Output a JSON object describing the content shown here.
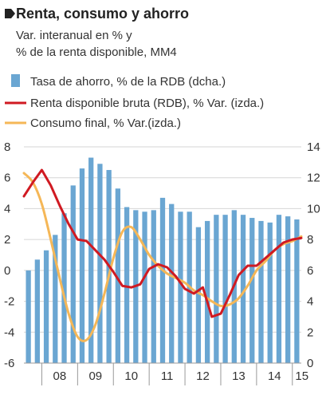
{
  "chart_data": {
    "type": "bar+line",
    "title": "Renta, consumo y ahorro",
    "subtitle_line1": "Var. interanual en % y",
    "subtitle_line2": "% de la renta disponible, MM4",
    "legend": [
      {
        "label": "Tasa de ahorro, % de la RDB (dcha.)",
        "color": "#6aa6d2",
        "kind": "bar"
      },
      {
        "label": "Renta disponible bruta (RDB), % Var. (izda.)",
        "color": "#d01a22",
        "kind": "line"
      },
      {
        "label": "Consumo final, % Var.(izda.)",
        "color": "#f5b757",
        "kind": "line"
      }
    ],
    "left_axis": {
      "ticks": [
        "8",
        "6",
        "4",
        "2",
        "0",
        "-2",
        "-4",
        "-6"
      ],
      "min": -6,
      "max": 8
    },
    "right_axis": {
      "ticks": [
        "14",
        "12",
        "10",
        "8",
        "6",
        "4",
        "2",
        "0"
      ],
      "min": 0,
      "max": 14
    },
    "x_labels": [
      "08",
      "09",
      "10",
      "11",
      "12",
      "13",
      "14",
      "15"
    ],
    "x_range": [
      2007.5,
      2015.25
    ],
    "bars": {
      "x": [
        2007.625,
        2007.875,
        2008.125,
        2008.375,
        2008.625,
        2008.875,
        2009.125,
        2009.375,
        2009.625,
        2009.875,
        2010.125,
        2010.375,
        2010.625,
        2010.875,
        2011.125,
        2011.375,
        2011.625,
        2011.875,
        2012.125,
        2012.375,
        2012.625,
        2012.875,
        2013.125,
        2013.375,
        2013.625,
        2013.875,
        2014.125,
        2014.375,
        2014.625,
        2014.875,
        2015.125
      ],
      "values": [
        6.0,
        6.7,
        7.3,
        8.3,
        9.7,
        11.5,
        12.6,
        13.3,
        12.9,
        12.5,
        11.3,
        10.1,
        9.9,
        9.8,
        9.9,
        10.7,
        10.3,
        9.8,
        9.8,
        8.8,
        9.2,
        9.6,
        9.6,
        9.9,
        9.6,
        9.4,
        9.2,
        9.1,
        9.6,
        9.5,
        9.3
      ]
    },
    "series": [
      {
        "name": "Renta disponible bruta (RDB), % Var. (izda.)",
        "color": "#d01a22",
        "x": [
          2007.5,
          2007.75,
          2008.0,
          2008.25,
          2008.5,
          2008.75,
          2009.0,
          2009.25,
          2009.5,
          2009.75,
          2010.0,
          2010.25,
          2010.5,
          2010.75,
          2011.0,
          2011.25,
          2011.5,
          2011.75,
          2012.0,
          2012.25,
          2012.5,
          2012.75,
          2013.0,
          2013.25,
          2013.5,
          2013.75,
          2014.0,
          2014.25,
          2014.5,
          2014.75,
          2015.0,
          2015.25
        ],
        "y": [
          4.8,
          5.7,
          6.5,
          5.5,
          4.2,
          3.0,
          2.0,
          1.9,
          1.3,
          0.7,
          -0.1,
          -1.0,
          -1.1,
          -0.9,
          0.1,
          0.4,
          0.2,
          -0.4,
          -1.2,
          -1.5,
          -1.1,
          -3.0,
          -2.8,
          -1.6,
          -0.3,
          0.3,
          0.3,
          0.8,
          1.3,
          1.8,
          2.0,
          2.1
        ]
      },
      {
        "name": "Consumo final, % Var.(izda.)",
        "color": "#f5b757",
        "x": [
          2007.5,
          2007.75,
          2008.0,
          2008.25,
          2008.5,
          2008.75,
          2009.0,
          2009.25,
          2009.5,
          2009.75,
          2010.0,
          2010.25,
          2010.5,
          2010.75,
          2011.0,
          2011.25,
          2011.5,
          2011.75,
          2012.0,
          2012.25,
          2012.5,
          2012.75,
          2013.0,
          2013.25,
          2013.5,
          2013.75,
          2014.0,
          2014.25,
          2014.5,
          2014.75,
          2015.0,
          2015.25
        ],
        "y": [
          6.3,
          5.7,
          4.3,
          2.0,
          -0.5,
          -2.8,
          -4.3,
          -4.5,
          -3.5,
          -1.5,
          0.8,
          2.5,
          2.8,
          2.0,
          1.0,
          0.3,
          -0.2,
          -0.5,
          -0.8,
          -1.3,
          -1.6,
          -2.0,
          -2.3,
          -2.2,
          -1.8,
          -1.0,
          0.0,
          0.6,
          1.3,
          1.7,
          1.9,
          2.2
        ]
      }
    ]
  }
}
